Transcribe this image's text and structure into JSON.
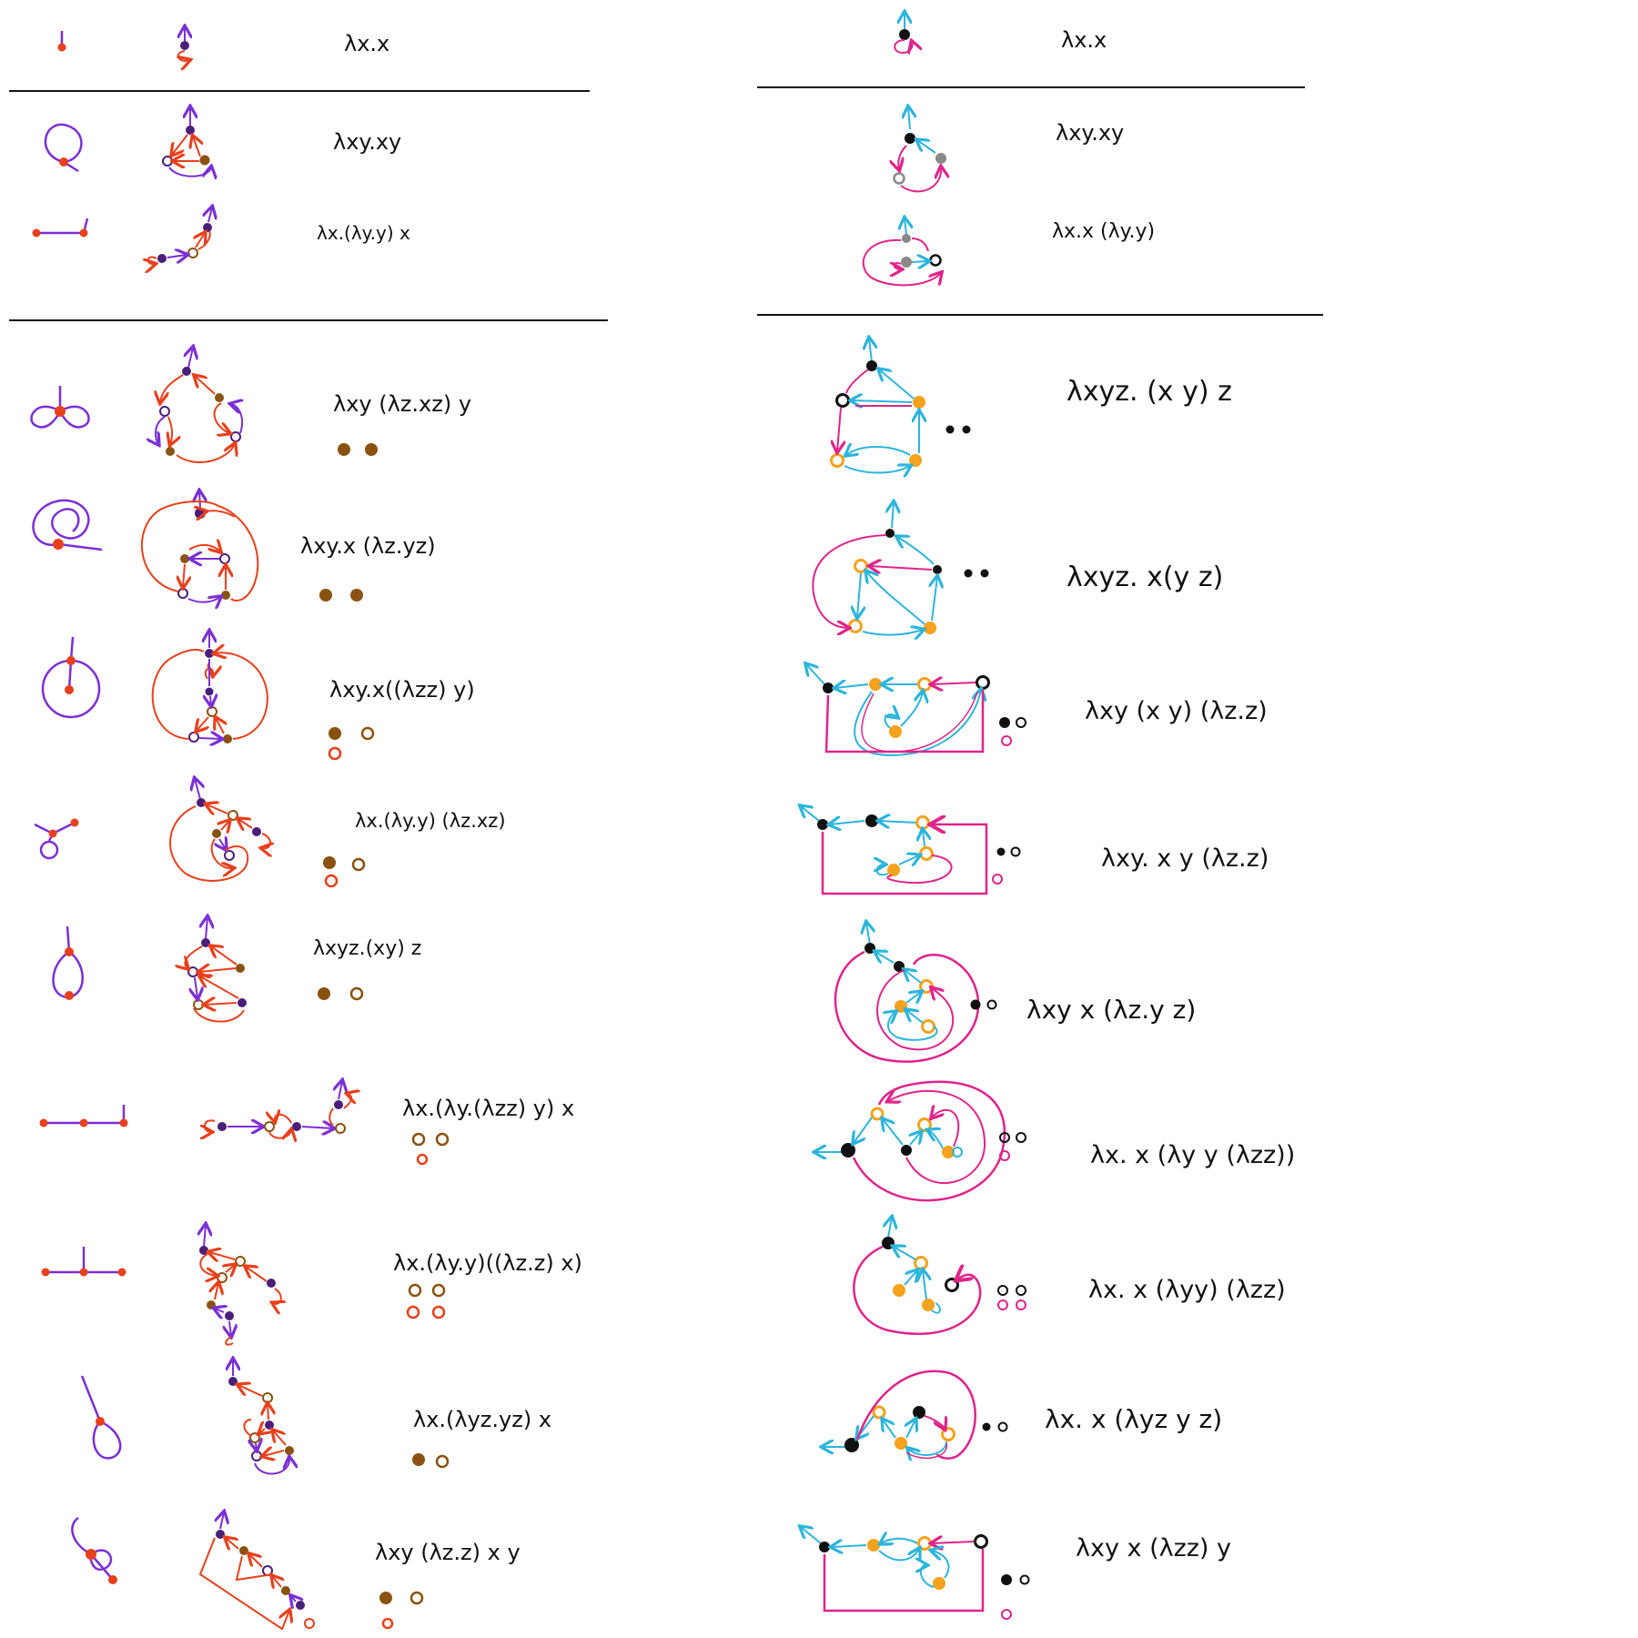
{
  "palette": {
    "purple": "#7b2fd6",
    "red": "#e8401c",
    "brown": "#8a5210",
    "cyan": "#2cb5dc",
    "magenta": "#e0248a",
    "orange": "#f5a21c",
    "black": "#111111",
    "grey": "#888888",
    "rule": "#111111"
  },
  "left": {
    "terms": [
      "λx.x",
      "λxy.xy",
      "λx.(λy.y) x",
      "λxy (λz.xz) y",
      "λxy.x (λz.yz)",
      "λxy.x((λzz) y)",
      "λx.(λy.y) (λz.xz)",
      "λxyz.(xy) z",
      "λx.(λy.(λzz) y) x",
      "λx.(λy.y)((λz.z) x)",
      "λx.(λyz.yz) x",
      "λxy (λz.z) x y"
    ]
  },
  "right": {
    "terms": [
      "λx.x",
      "λxy.xy",
      "λx.x (λy.y)",
      "λxyz. (x y) z",
      "λxyz. x(y z)",
      "λxy (x y) (λz.z)",
      "λxy. x y (λz.z)",
      "λxy  x (λz.y z)",
      "λx. x  (λy y (λzz))",
      "λx. x (λyy) (λzz)",
      "λx. x (λyz y z)",
      "λxy   x (λzz)  y"
    ]
  }
}
